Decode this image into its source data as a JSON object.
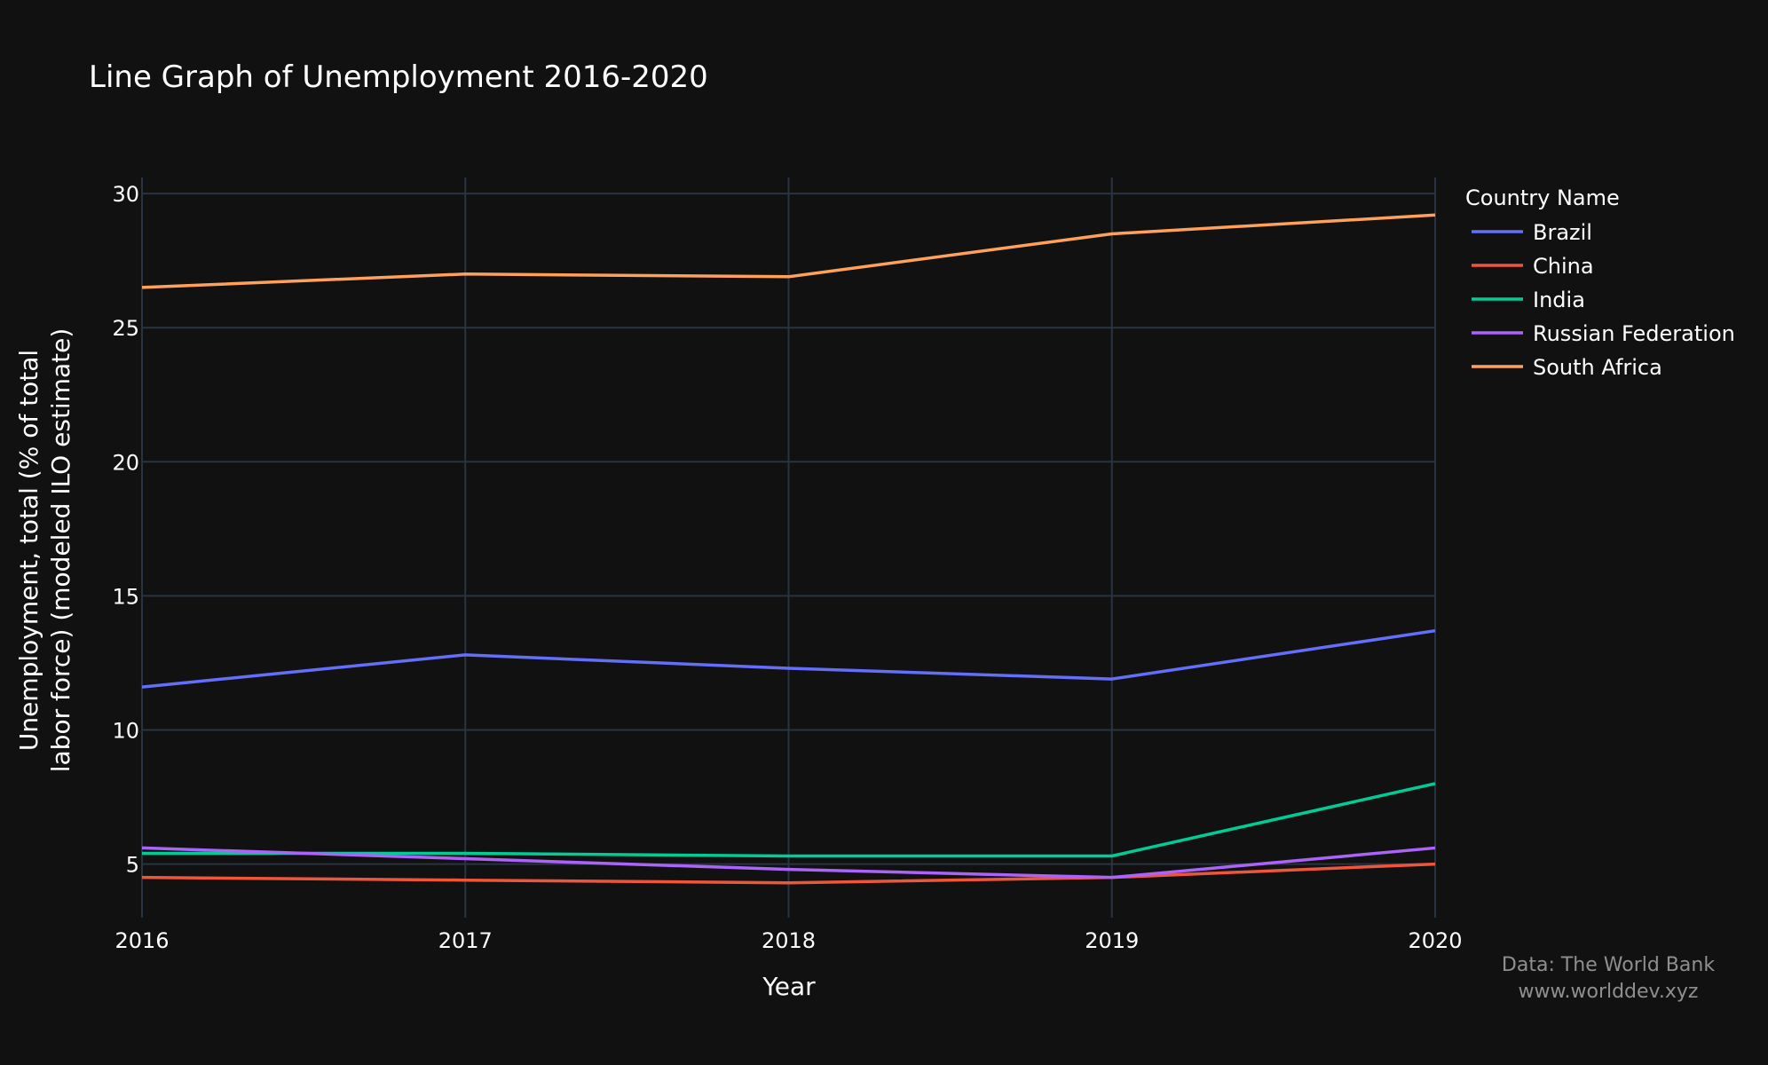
{
  "chart_data": {
    "type": "line",
    "title": "Line Graph of Unemployment 2016-2020",
    "xlabel": "Year",
    "ylabel_lines": [
      "Unemployment, total (% of total",
      "labor force) (modeled ILO estimate)"
    ],
    "x": [
      2016,
      2017,
      2018,
      2019,
      2020
    ],
    "x_ticks": [
      "2016",
      "2017",
      "2018",
      "2019",
      "2020"
    ],
    "y_ticks": [
      "5",
      "10",
      "15",
      "20",
      "25",
      "30"
    ],
    "xlim": [
      2016,
      2020
    ],
    "ylim": [
      3.0,
      30.6
    ],
    "grid": true,
    "legend": {
      "title": "Country Name",
      "position": "top-right"
    },
    "series": [
      {
        "name": "Brazil",
        "color": "#636efa",
        "values": [
          11.6,
          12.8,
          12.3,
          11.9,
          13.7
        ]
      },
      {
        "name": "China",
        "color": "#ef553b",
        "values": [
          4.5,
          4.4,
          4.3,
          4.5,
          5.0
        ]
      },
      {
        "name": "India",
        "color": "#00cc96",
        "values": [
          5.4,
          5.4,
          5.3,
          5.3,
          8.0
        ]
      },
      {
        "name": "Russian Federation",
        "color": "#ab63fa",
        "values": [
          5.6,
          5.2,
          4.8,
          4.5,
          5.6
        ]
      },
      {
        "name": "South Africa",
        "color": "#ffa15a",
        "values": [
          26.5,
          27.0,
          26.9,
          28.5,
          29.2
        ]
      }
    ]
  },
  "source": {
    "line1": "Data: The World Bank",
    "line2": "www.worlddev.xyz"
  }
}
